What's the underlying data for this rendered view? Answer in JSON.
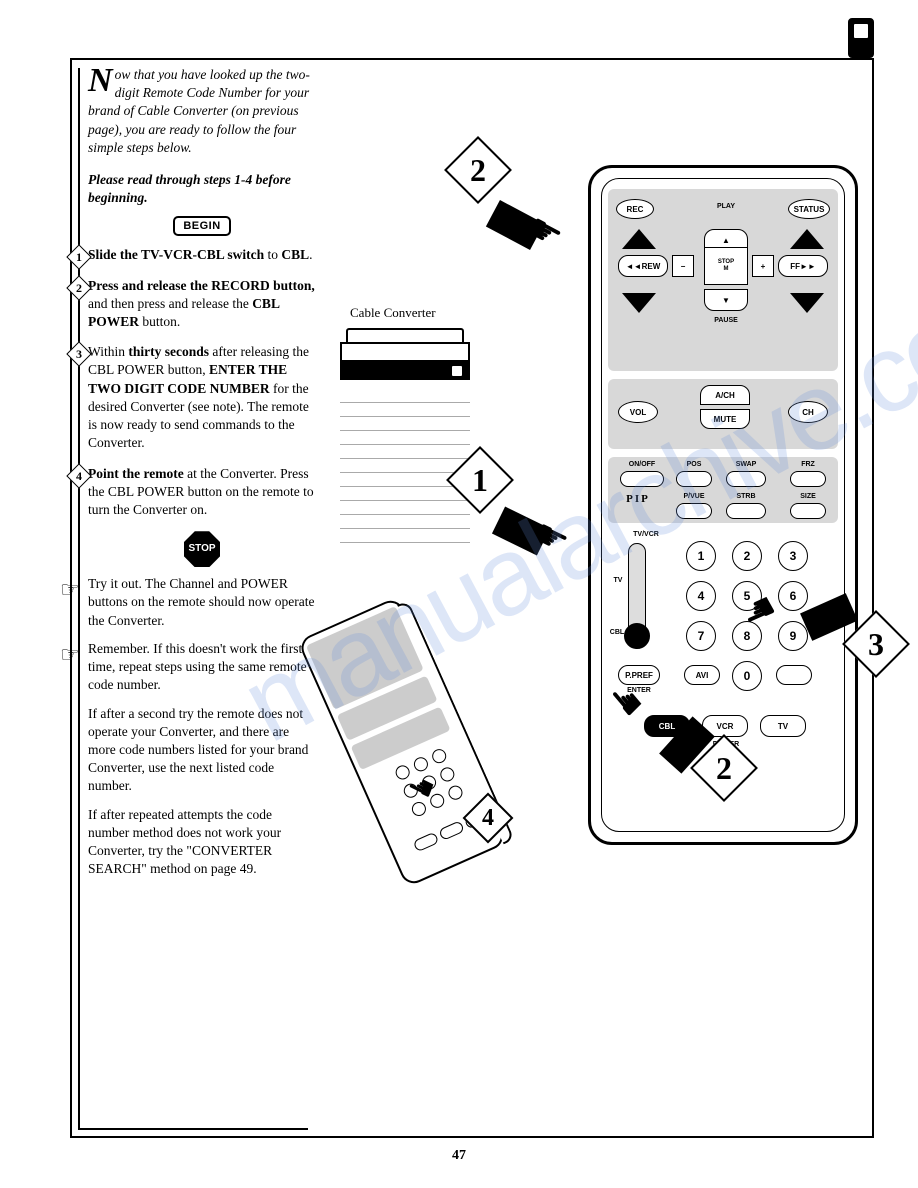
{
  "page_number": "47",
  "watermark": "manualarchive.com",
  "intro": {
    "dropcap": "N",
    "text": "ow that you have looked up the two-digit Remote Code Number for your brand of Cable Converter (on previous page), you are ready to follow the four simple steps below."
  },
  "please_read": "Please read through steps 1-4 before beginning.",
  "begin_label": "BEGIN",
  "steps": [
    {
      "num": "1",
      "html": "<b>Slide the TV-VCR-CBL switch</b> to <b>CBL</b>."
    },
    {
      "num": "2",
      "html": "<b>Press and release the RECORD button,</b> and then press and release the <b>CBL POWER</b> button."
    },
    {
      "num": "3",
      "html": "Within <b>thirty seconds</b> after releasing the CBL POWER button, <b>ENTER THE TWO DIGIT CODE NUMBER</b> for the desired Converter (see note). The remote is now ready to send commands to the Converter."
    },
    {
      "num": "4",
      "html": "<b>Point the remote</b> at the Converter. Press the CBL POWER button on the remote to turn the Converter on."
    }
  ],
  "stop_label": "STOP",
  "tryit": "Try it out. The Channel and POWER buttons on the remote should now operate the Converter.",
  "remember": "Remember. If this doesn't work the first time, repeat steps using the same remote code number.",
  "fallback1": "If after a second try the remote does not operate your Converter, and there are more code numbers listed for your brand Converter, use the next listed code number.",
  "fallback2": "If after repeated attempts the code number method does not work your Converter, try the \"CONVERTER SEARCH\" method on page 49.",
  "converter_label": "Cable Converter",
  "remote": {
    "top_row": {
      "rec": "REC",
      "play": "PLAY",
      "status": "STATUS"
    },
    "cross": {
      "rew": "◄◄REW",
      "stop": "STOP",
      "m": "M",
      "ff": "FF►►",
      "pause": "PAUSE",
      "minus": "−",
      "plus": "+"
    },
    "row2": {
      "vol": "VOL",
      "ach": "A/CH",
      "mute": "MUTE",
      "ch": "CH"
    },
    "pip": {
      "label": "PIP",
      "onoff": "ON/OFF",
      "pos": "POS",
      "swap": "SWAP",
      "frz": "FRZ",
      "pvue": "P/VUE",
      "strb": "STRB",
      "size": "SIZE"
    },
    "switch_labels": {
      "tvvcr": "TV/VCR",
      "tv": "TV",
      "cbl": "CBL"
    },
    "numpad": [
      "1",
      "2",
      "3",
      "4",
      "5",
      "6",
      "7",
      "8",
      "9",
      "0"
    ],
    "ppref": "P.PREF",
    "enter": "ENTER",
    "avi": "AVI",
    "power_row": {
      "cbl": "CBL",
      "vcr": "VCR",
      "tv": "TV",
      "power": "POWER"
    }
  },
  "callouts": [
    "1",
    "2",
    "3",
    "4"
  ]
}
